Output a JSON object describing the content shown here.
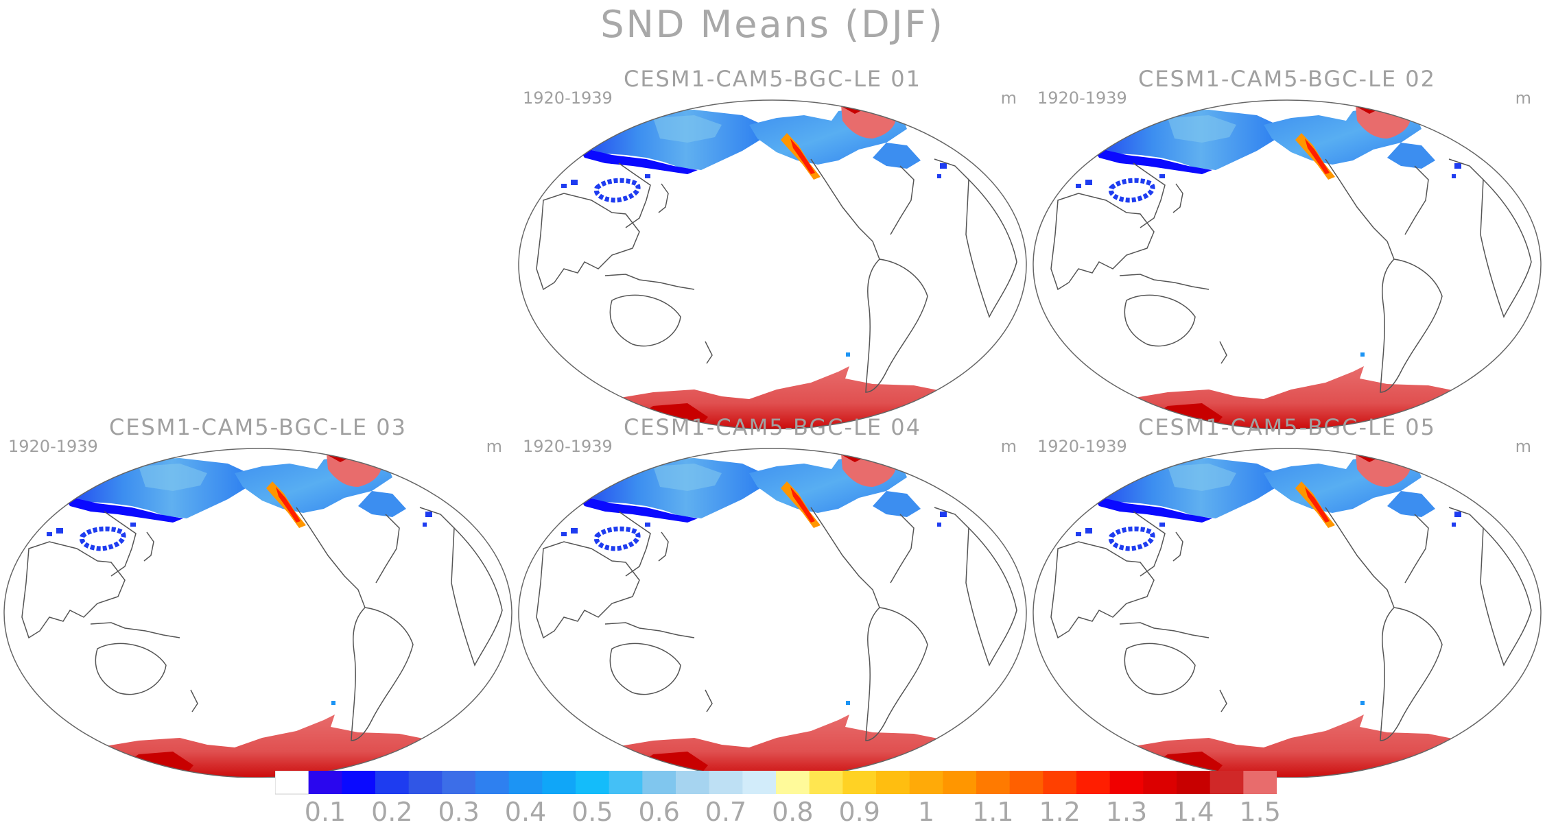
{
  "title": "SND Means (DJF)",
  "panels": [
    {
      "title": "CESM1-CAM5-BGC-LE 01",
      "period": "1920-1939",
      "unit": "m"
    },
    {
      "title": "CESM1-CAM5-BGC-LE 02",
      "period": "1920-1939",
      "unit": "m"
    },
    {
      "title": "CESM1-CAM5-BGC-LE 03",
      "period": "1920-1939",
      "unit": "m"
    },
    {
      "title": "CESM1-CAM5-BGC-LE 04",
      "period": "1920-1939",
      "unit": "m"
    },
    {
      "title": "CESM1-CAM5-BGC-LE 05",
      "period": "1920-1939",
      "unit": "m"
    }
  ],
  "colorbar": {
    "colors": [
      "#ffffff",
      "#2a06ee",
      "#0a0aff",
      "#1e3cf0",
      "#3056e6",
      "#3c6ee8",
      "#2e80f0",
      "#1c94f4",
      "#10a6f8",
      "#14bcfa",
      "#44c0f6",
      "#80c6ee",
      "#a6d4f0",
      "#bee0f4",
      "#d2ecfa",
      "#fffa9a",
      "#ffe650",
      "#ffd224",
      "#ffbe10",
      "#ffaa08",
      "#ff9600",
      "#ff7a00",
      "#ff6000",
      "#ff4000",
      "#ff1e00",
      "#f00000",
      "#dc0000",
      "#c80000",
      "#d02828",
      "#e86c6c"
    ],
    "tick_labels": [
      "0.1",
      "0.2",
      "0.3",
      "0.4",
      "0.5",
      "0.6",
      "0.7",
      "0.8",
      "0.9",
      "1",
      "1.1",
      "1.2",
      "1.3",
      "1.4",
      "1.5"
    ]
  }
}
